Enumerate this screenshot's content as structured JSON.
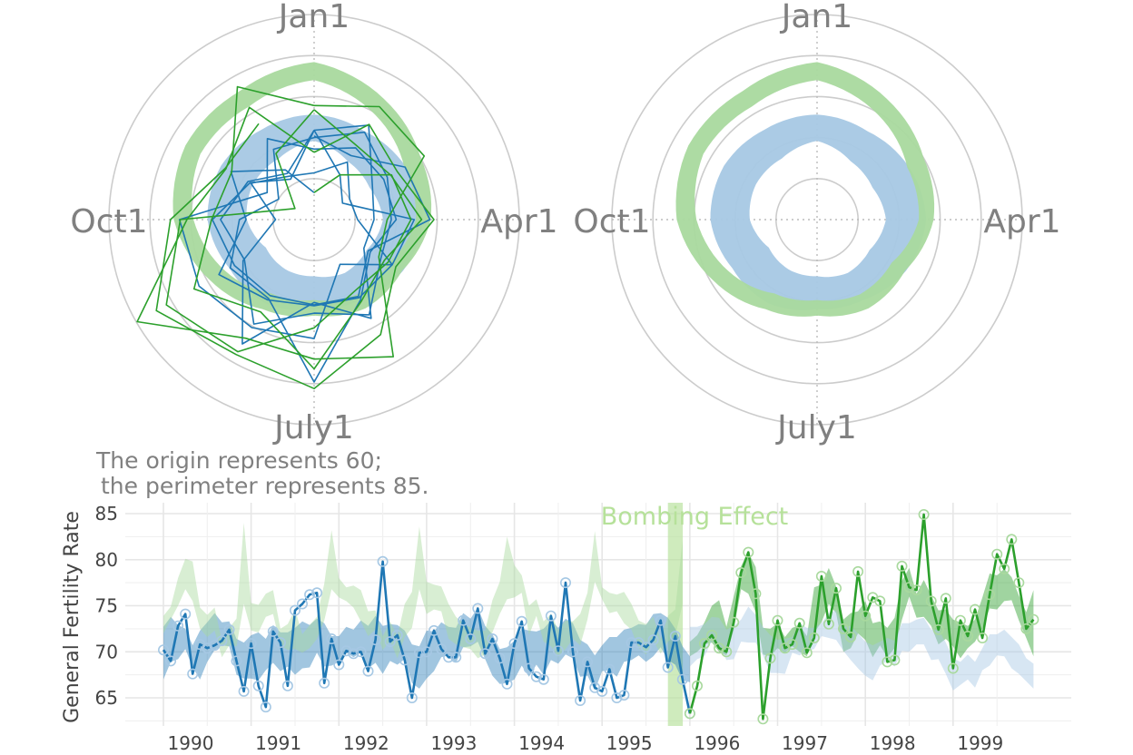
{
  "polar_scale_note": {
    "line1": "The origin represents 60;",
    "line2": "the perimeter represents 85."
  },
  "colors": {
    "before": "#1f77b4",
    "after": "#2ca02c",
    "before_light": "#a6c8e4",
    "after_light": "#a9d99e",
    "event": "#b6e19a"
  },
  "chart_data": [
    {
      "type": "polar-line",
      "panel": "left-polar",
      "angular_labels": [
        "Jan1",
        "Apr1",
        "July1",
        "Oct1"
      ],
      "radial_range": [
        60,
        85
      ],
      "ring_values": [
        65,
        70,
        75,
        80,
        85
      ],
      "grid": true,
      "series": [
        {
          "name": "",
          "color_key": "before_light",
          "mode": "band",
          "months": [
            1,
            2,
            3,
            4,
            5,
            6,
            7,
            8,
            9,
            10,
            11,
            12
          ],
          "low": [
            69.6,
            68.2,
            67.8,
            68.4,
            67.4,
            67.5,
            66.9,
            67.0,
            66.8,
            68.2,
            68.6,
            68.6
          ],
          "high": [
            72.8,
            72.4,
            72.9,
            73.3,
            72.5,
            71.3,
            70.9,
            71.8,
            71.9,
            73.0,
            73.1,
            72.7
          ]
        },
        {
          "name": "",
          "color_key": "after_light",
          "mode": "band",
          "months": [
            1,
            2,
            3,
            4,
            5,
            6,
            7,
            8,
            9,
            10,
            11,
            12
          ],
          "low": [
            77.0,
            74.8,
            72.7,
            72.4,
            70.5,
            70.5,
            69.8,
            70.4,
            72.5,
            74.7,
            76.0,
            75.9
          ],
          "high": [
            79.2,
            77.0,
            75.0,
            74.2,
            72.4,
            72.5,
            71.7,
            72.6,
            74.7,
            77.1,
            78.1,
            78.1
          ]
        },
        {
          "name": "",
          "color_key": "before",
          "mode": "yearly-lines",
          "years": [
            1990,
            1991,
            1992,
            1993,
            1994,
            1995
          ]
        },
        {
          "name": "",
          "color_key": "after",
          "mode": "yearly-lines",
          "years": [
            1996,
            1997,
            1998,
            1999
          ]
        }
      ]
    },
    {
      "type": "polar-band",
      "panel": "right-polar",
      "angular_labels": [
        "Jan1",
        "Apr1",
        "July1",
        "Oct1"
      ],
      "radial_range": [
        60,
        85
      ],
      "ring_values": [
        65,
        70,
        75,
        80,
        85
      ],
      "grid": true,
      "series": [
        {
          "name": "",
          "color_key": "before_light",
          "mode": "band",
          "months": [
            1,
            2,
            3,
            4,
            5,
            6,
            7,
            8,
            9,
            10,
            11,
            12
          ],
          "low": [
            69.6,
            68.2,
            67.8,
            68.4,
            67.4,
            67.5,
            66.9,
            67.0,
            66.8,
            68.2,
            68.6,
            68.6
          ],
          "high": [
            72.8,
            72.4,
            72.9,
            73.3,
            72.5,
            71.3,
            70.9,
            71.8,
            71.9,
            73.0,
            73.1,
            72.7
          ]
        },
        {
          "name": "",
          "color_key": "after_light",
          "mode": "band",
          "months": [
            1,
            2,
            3,
            4,
            5,
            6,
            7,
            8,
            9,
            10,
            11,
            12
          ],
          "low": [
            77.0,
            74.8,
            72.7,
            72.4,
            70.5,
            70.5,
            69.8,
            70.4,
            72.5,
            74.7,
            76.0,
            75.9
          ],
          "high": [
            79.2,
            77.0,
            75.0,
            74.2,
            72.4,
            72.5,
            71.7,
            72.6,
            74.7,
            77.1,
            78.1,
            78.1
          ]
        }
      ]
    },
    {
      "type": "line",
      "panel": "time-series",
      "title": "",
      "xlabel": "",
      "ylabel": "General Fertility Rate",
      "xlim": [
        1989.5,
        2000.0
      ],
      "ylim": [
        62,
        86
      ],
      "y_ticks": [
        65,
        70,
        75,
        80,
        85
      ],
      "x_ticks": [
        1990,
        1991,
        1992,
        1993,
        1994,
        1995,
        1996,
        1997,
        1998,
        1999
      ],
      "x_tick_labels": [
        "1990",
        "1991",
        "1992",
        "1993",
        "1994",
        "1995",
        "1996",
        "1997",
        "1998",
        "1999"
      ],
      "grid": true,
      "start_year": 1990,
      "event": {
        "label": "Bombing Effect",
        "x_from": 1995.75,
        "x_to": 1995.92
      },
      "series": [
        {
          "name": "",
          "color_key": "before",
          "style": "line-with-circles",
          "start_month_index": 0,
          "values": [
            70.2,
            69.0,
            72.8,
            74.1,
            67.6,
            70.8,
            70.4,
            70.7,
            71.2,
            72.4,
            69.0,
            65.7,
            70.9,
            66.3,
            64.0,
            72.2,
            71.0,
            66.3,
            74.5,
            75.2,
            76.2,
            76.4,
            66.6,
            71.4,
            68.6,
            70.1,
            69.8,
            70.0,
            67.9,
            71.3,
            79.8,
            71.1,
            71.8,
            69.1,
            65.0,
            69.9,
            70.0,
            72.3,
            70.3,
            69.4,
            69.4,
            73.4,
            71.4,
            74.7,
            69.8,
            71.4,
            69.3,
            66.5,
            70.9,
            73.3,
            68.2,
            67.3,
            67.0,
            73.9,
            70.1,
            77.5,
            70.0,
            64.7,
            68.9,
            66.1,
            65.7,
            68.1,
            65.0,
            65.3,
            71.0,
            71.0,
            70.5,
            71.3,
            73.4,
            68.3,
            71.7,
            67.0,
            63.3
          ]
        },
        {
          "name": "",
          "color_key": "after",
          "style": "line-with-circles",
          "start_month_index": 72,
          "values": [
            63.3,
            66.3,
            70.9,
            71.8,
            70.4,
            70.0,
            73.2,
            78.6,
            80.8,
            76.3,
            62.7,
            69.3,
            73.4,
            70.4,
            70.8,
            73.1,
            69.9,
            71.5,
            78.2,
            73.0,
            76.9,
            72.5,
            71.6,
            78.7,
            73.9,
            75.9,
            75.5,
            68.9,
            69.1,
            79.3,
            77.0,
            76.7,
            84.9,
            75.5,
            72.4,
            75.8,
            68.2,
            73.4,
            71.7,
            74.6,
            71.5,
            76.2,
            80.6,
            79.0,
            82.2,
            77.5,
            72.5,
            73.5
          ]
        },
        {
          "name": "",
          "color_key": "before",
          "style": "band",
          "start_month_index": 0,
          "values_low": [
            67.0,
            68.9,
            69.2,
            70.3,
            68.3,
            67.0,
            68.9,
            70.2,
            70.7,
            70.6,
            67.5,
            67.1,
            67.1,
            66.9,
            68.0,
            68.8,
            67.9,
            68.4,
            67.5,
            68.2,
            68.3,
            69.9,
            68.4,
            68.5,
            68.9,
            69.9,
            69.4,
            69.9,
            68.2,
            68.8,
            67.6,
            69.0,
            68.6,
            69.2,
            66.6,
            66.0,
            67.1,
            67.9,
            69.4,
            69.6,
            68.8,
            70.5,
            70.6,
            71.1,
            69.2,
            67.4,
            66.5,
            66.6,
            67.0,
            68.5,
            67.3,
            68.6,
            67.5,
            69.1,
            68.7,
            69.7,
            69.3,
            67.3,
            67.4,
            65.8,
            67.9,
            68.0,
            67.3,
            68.9,
            69.1,
            69.6,
            68.9,
            69.5,
            70.5,
            69.1,
            68.6,
            66.9,
            66.7
          ],
          "values_high": [
            72.7,
            73.8,
            72.9,
            72.5,
            70.7,
            72.3,
            73.2,
            74.2,
            73.2,
            73.3,
            71.4,
            71.0,
            71.8,
            72.1,
            71.4,
            72.9,
            72.1,
            72.1,
            72.6,
            73.3,
            72.9,
            73.6,
            73.1,
            71.7,
            71.7,
            72.7,
            72.4,
            73.4,
            72.8,
            73.9,
            72.8,
            73.0,
            72.9,
            72.3,
            70.8,
            70.6,
            72.3,
            72.2,
            73.2,
            72.7,
            72.6,
            74.2,
            73.6,
            74.8,
            72.8,
            71.9,
            70.3,
            70.5,
            71.2,
            72.5,
            72.3,
            72.2,
            72.5,
            73.4,
            72.6,
            73.6,
            73.1,
            71.3,
            70.8,
            69.6,
            70.7,
            71.6,
            71.6,
            72.4,
            72.6,
            73.0,
            72.9,
            74.1,
            74.2,
            73.7,
            72.5,
            70.6,
            69.5
          ]
        },
        {
          "name": "",
          "color_key": "after_light",
          "style": "band",
          "start_month_index": 0,
          "values_low": [
            72.0,
            73.5,
            75.0,
            76.8,
            75.5,
            72.5,
            71.6,
            72.3,
            69.4,
            70.7,
            70.6,
            75.2,
            72.3,
            72.1,
            73.8,
            74.1,
            70.7,
            70.2,
            70.3,
            69.9,
            70.4,
            71.4,
            73.4,
            76.8,
            75.9,
            75.5,
            74.8,
            73.3,
            71.7,
            72.4,
            70.2,
            71.2,
            69.3,
            71.6,
            72.6,
            76.8,
            74.1,
            74.6,
            74.4,
            71.4,
            70.8,
            70.5,
            70.3,
            69.3,
            69.7,
            72.1,
            74.1,
            75.7,
            75.9,
            76.4,
            71.8,
            73.9,
            71.1,
            70.6,
            69.4,
            70.3,
            71.4,
            70.7,
            73.5,
            77.6,
            75.7,
            74.2,
            74.4,
            73.1,
            72.4,
            70.4,
            69.7,
            71.2,
            69.8,
            71.1,
            71.7,
            75.2
          ],
          "values_high": [
            73.9,
            74.9,
            78.0,
            80.1,
            79.8,
            74.8,
            74.0,
            74.8,
            71.2,
            72.6,
            73.6,
            84.0,
            75.3,
            75.1,
            76.3,
            76.7,
            72.5,
            73.0,
            74.6,
            71.9,
            72.9,
            73.8,
            77.4,
            83.2,
            78.0,
            77.0,
            77.2,
            76.7,
            74.4,
            74.5,
            71.7,
            73.3,
            71.7,
            75.2,
            76.5,
            83.6,
            77.6,
            77.3,
            77.1,
            75.2,
            73.8,
            73.1,
            72.6,
            72.3,
            72.3,
            75.6,
            77.6,
            82.5,
            79.4,
            78.3,
            75.0,
            75.7,
            73.3,
            74.1,
            72.4,
            73.4,
            73.3,
            74.1,
            76.4,
            83.1,
            77.0,
            76.4,
            76.2,
            76.5,
            75.2,
            73.4,
            73.0,
            73.8,
            71.4,
            73.9,
            74.6,
            82.1
          ]
        },
        {
          "name": "",
          "color_key": "after",
          "style": "band",
          "start_month_index": 72,
          "values_low": [
            69.5,
            70.0,
            70.8,
            71.0,
            70.0,
            69.6,
            72.4,
            76.8,
            76.3,
            74.3,
            69.7,
            69.5,
            70.4,
            69.9,
            70.6,
            70.0,
            69.5,
            72.1,
            73.2,
            75.2,
            74.2,
            70.0,
            70.4,
            72.0,
            71.3,
            69.4,
            70.7,
            69.4,
            70.4,
            73.5,
            76.0,
            73.7,
            73.8,
            72.8,
            70.8,
            71.4,
            70.6,
            69.3,
            70.4,
            71.1,
            72.5,
            74.7,
            74.6,
            75.5,
            75.6,
            73.4,
            71.5,
            69.5
          ],
          "values_high": [
            71.1,
            71.8,
            73.2,
            75.0,
            75.6,
            72.7,
            76.0,
            79.3,
            80.8,
            79.2,
            72.6,
            72.5,
            73.1,
            71.6,
            72.6,
            72.9,
            71.7,
            77.0,
            77.3,
            79.1,
            77.1,
            73.5,
            74.2,
            74.4,
            75.5,
            73.1,
            73.3,
            72.6,
            73.7,
            77.7,
            79.1,
            76.3,
            77.8,
            76.1,
            74.5,
            74.6,
            73.5,
            73.2,
            72.8,
            73.5,
            75.9,
            78.5,
            78.3,
            79.0,
            78.1,
            76.1,
            74.3,
            76.7
          ]
        },
        {
          "name": "",
          "color_key": "before_light",
          "style": "band",
          "start_month_index": 72,
          "values_low": [
            68.4,
            69.2,
            69.5,
            71.2,
            70.6,
            69.1,
            69.2,
            71.1,
            71.0,
            71.0,
            69.6,
            67.7,
            67.7,
            67.6,
            69.9,
            69.6,
            70.1,
            70.3,
            71.7,
            71.5,
            71.3,
            70.1,
            69.1,
            68.2,
            67.4,
            66.9,
            68.5,
            69.0,
            68.4,
            70.1,
            70.0,
            70.8,
            70.8,
            69.1,
            69.2,
            67.6,
            65.8,
            66.4,
            67.0,
            66.1,
            68.0,
            68.5,
            69.6,
            69.5,
            68.2,
            67.6,
            66.8,
            66.0
          ],
          "values_high": [
            72.7,
            72.7,
            73.0,
            73.8,
            73.7,
            72.4,
            72.8,
            73.5,
            74.9,
            74.0,
            72.7,
            71.8,
            71.3,
            71.4,
            71.6,
            73.1,
            72.6,
            72.6,
            73.1,
            74.2,
            74.5,
            72.7,
            72.8,
            72.0,
            71.1,
            70.7,
            71.1,
            71.5,
            71.2,
            73.1,
            73.1,
            73.5,
            73.7,
            72.4,
            72.4,
            71.0,
            69.3,
            68.9,
            69.7,
            68.9,
            70.4,
            71.9,
            71.9,
            72.4,
            71.6,
            70.8,
            69.3,
            68.7
          ]
        }
      ]
    }
  ]
}
